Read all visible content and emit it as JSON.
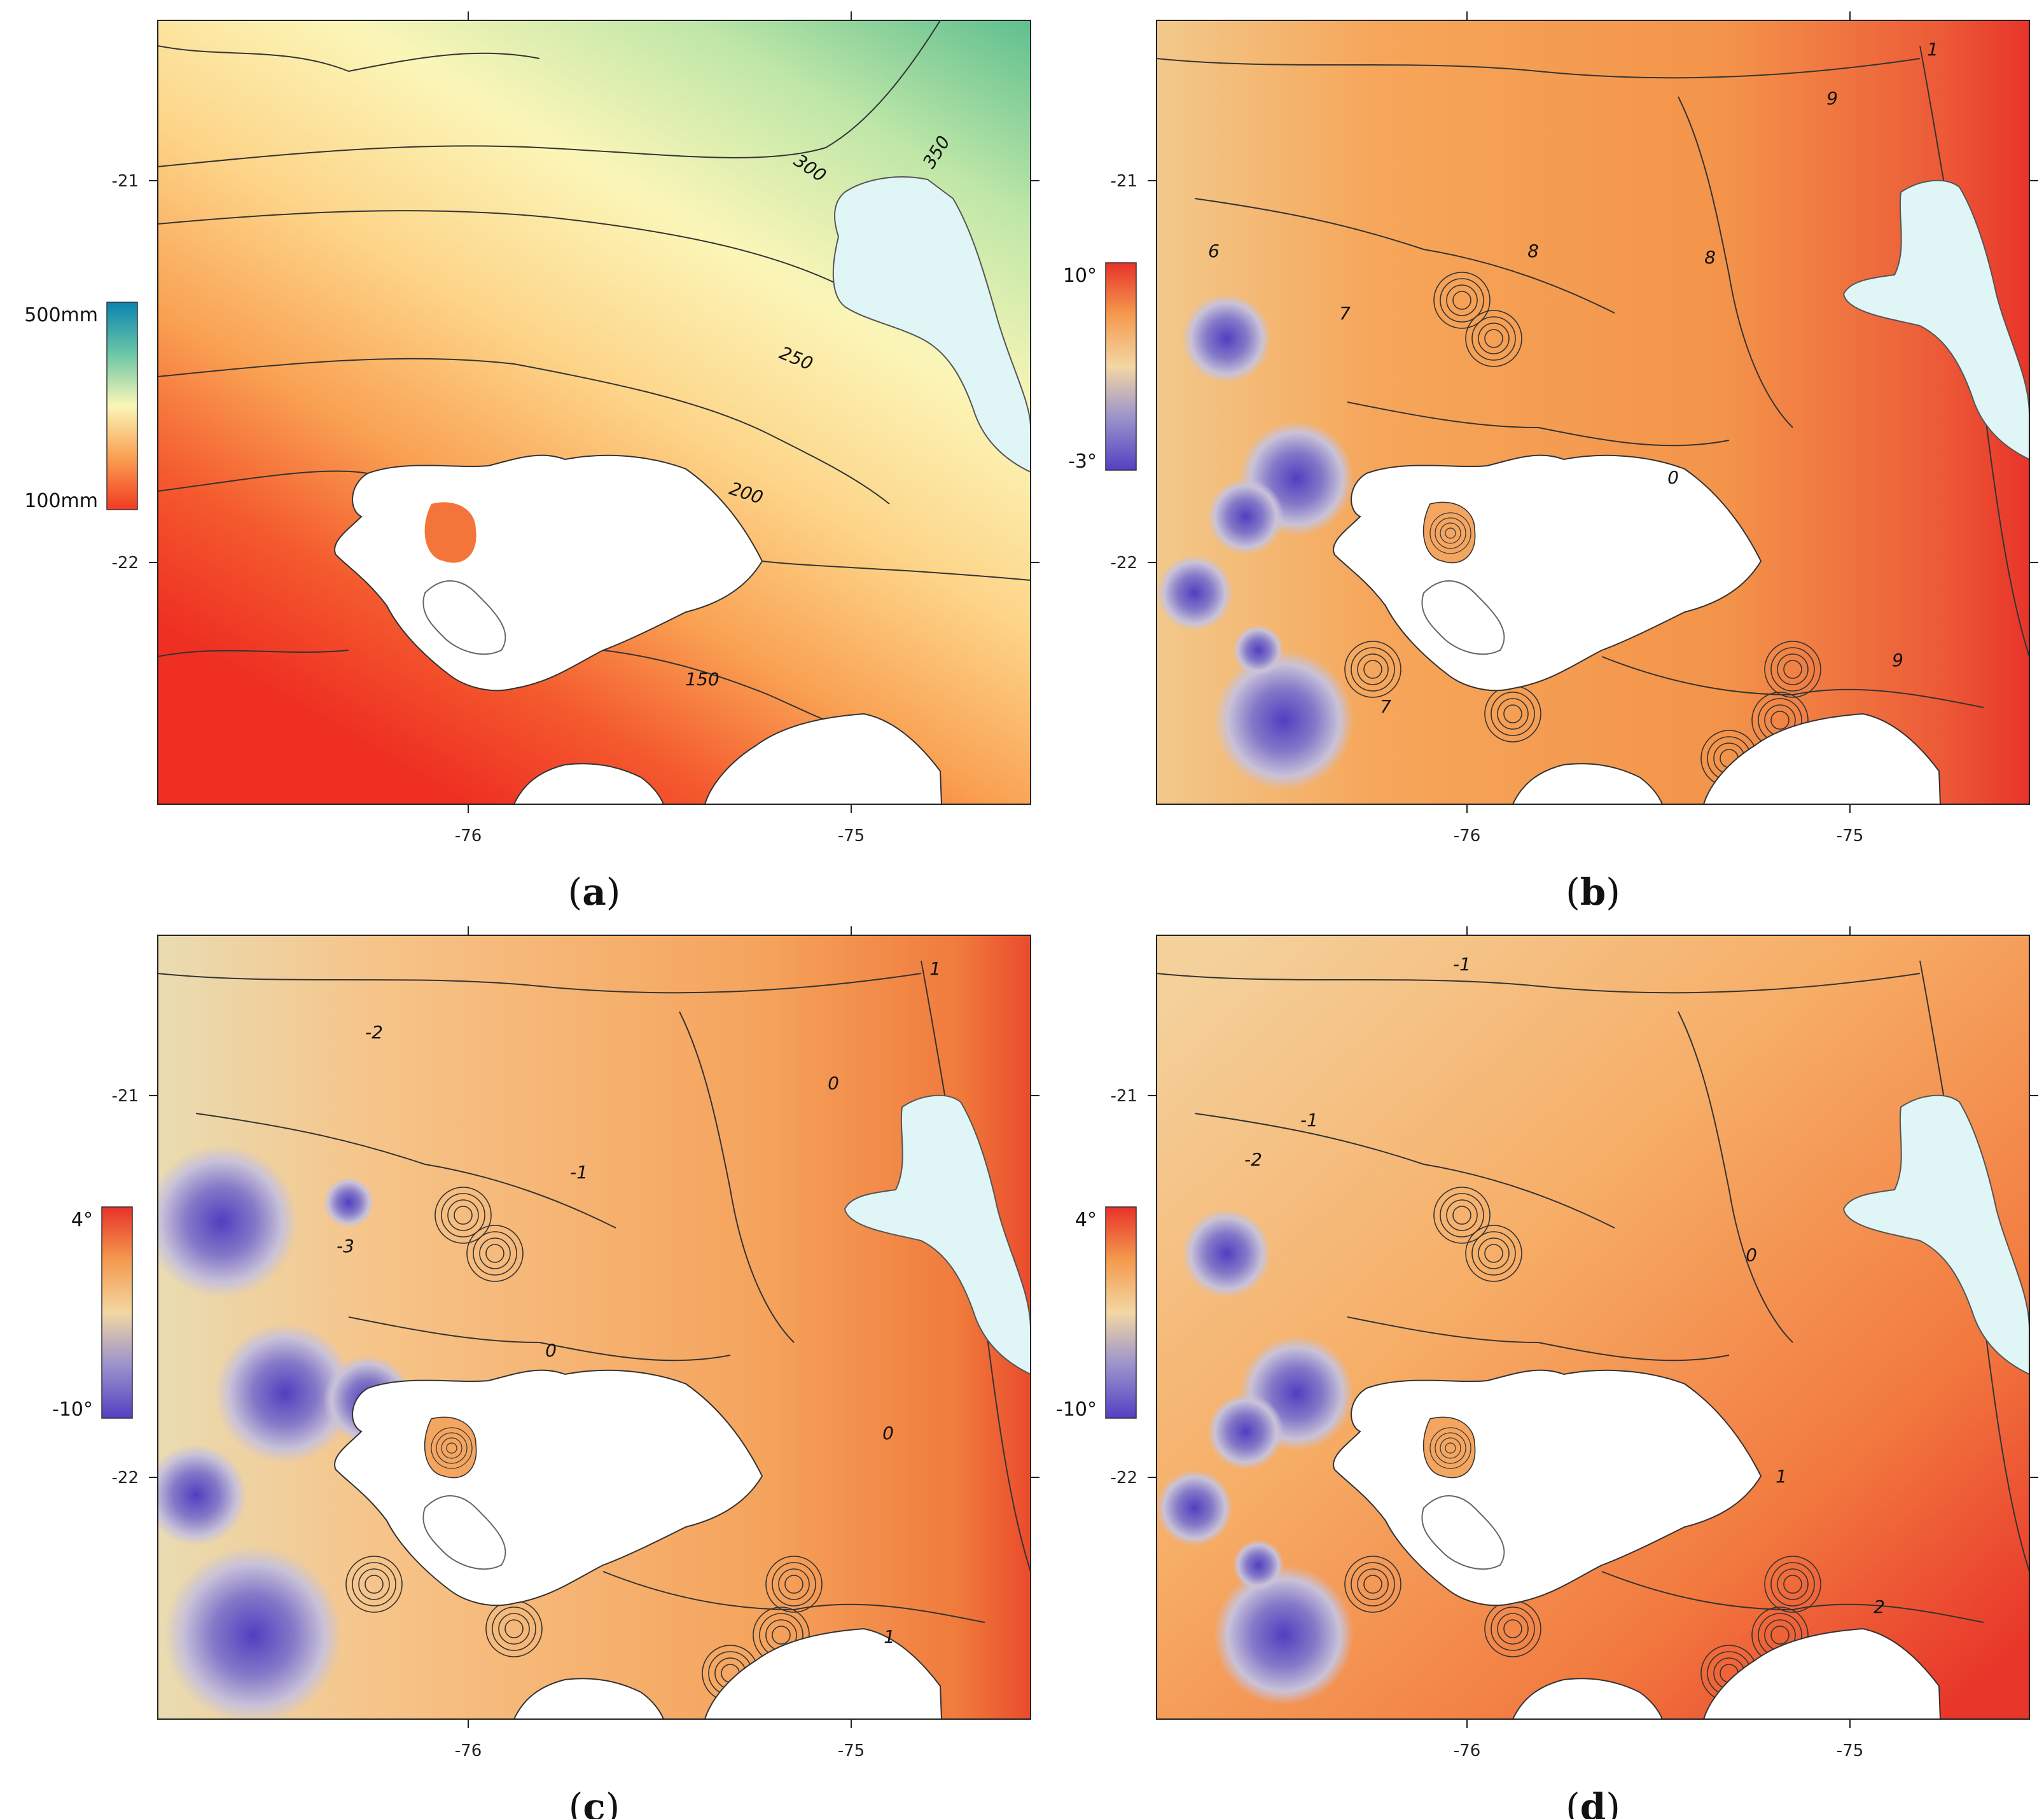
{
  "axes": {
    "lon_ticks": [
      "-76",
      "-75"
    ],
    "lat_ticks": [
      "-21",
      "-22"
    ]
  },
  "colors": {
    "lake": "#dff5f6",
    "island": "#ffffff",
    "contour": "#333333",
    "ramp_precip": [
      "#0a84b0",
      "#66c2a0",
      "#c7e8a8",
      "#fdf7b8",
      "#fdd27d",
      "#f99a48",
      "#f23a22"
    ],
    "ramp_temp_b": [
      "#e8322a",
      "#f07b3a",
      "#f6a85a",
      "#f1d2a0",
      "#c9c4d4",
      "#8d83c9",
      "#5340c2"
    ],
    "ramp_temp_cd": [
      "#e8322a",
      "#f07b3a",
      "#f6a85a",
      "#f1d2a0",
      "#c9c4d4",
      "#8d83c9",
      "#5340c2"
    ]
  },
  "panels": [
    {
      "id": "a",
      "label": "a",
      "legend": {
        "top": "500mm",
        "bottom": "100mm"
      },
      "contour_labels": [
        "350",
        "300",
        "250",
        "200",
        "150"
      ]
    },
    {
      "id": "b",
      "label": "b",
      "legend": {
        "top": "10°",
        "bottom": "-3°"
      },
      "contour_labels": [
        "1",
        "9",
        "6",
        "8",
        "8",
        "7",
        "0",
        "9",
        "7"
      ]
    },
    {
      "id": "c",
      "label": "c",
      "legend": {
        "top": "4°",
        "bottom": "-10°"
      },
      "contour_labels": [
        "1",
        "-2",
        "0",
        "-1",
        "-3",
        "0",
        "0",
        "1"
      ]
    },
    {
      "id": "d",
      "label": "d",
      "legend": {
        "top": "4°",
        "bottom": "-10°"
      },
      "contour_labels": [
        "-1",
        "-1",
        "-2",
        "0",
        "1",
        "2"
      ]
    }
  ]
}
